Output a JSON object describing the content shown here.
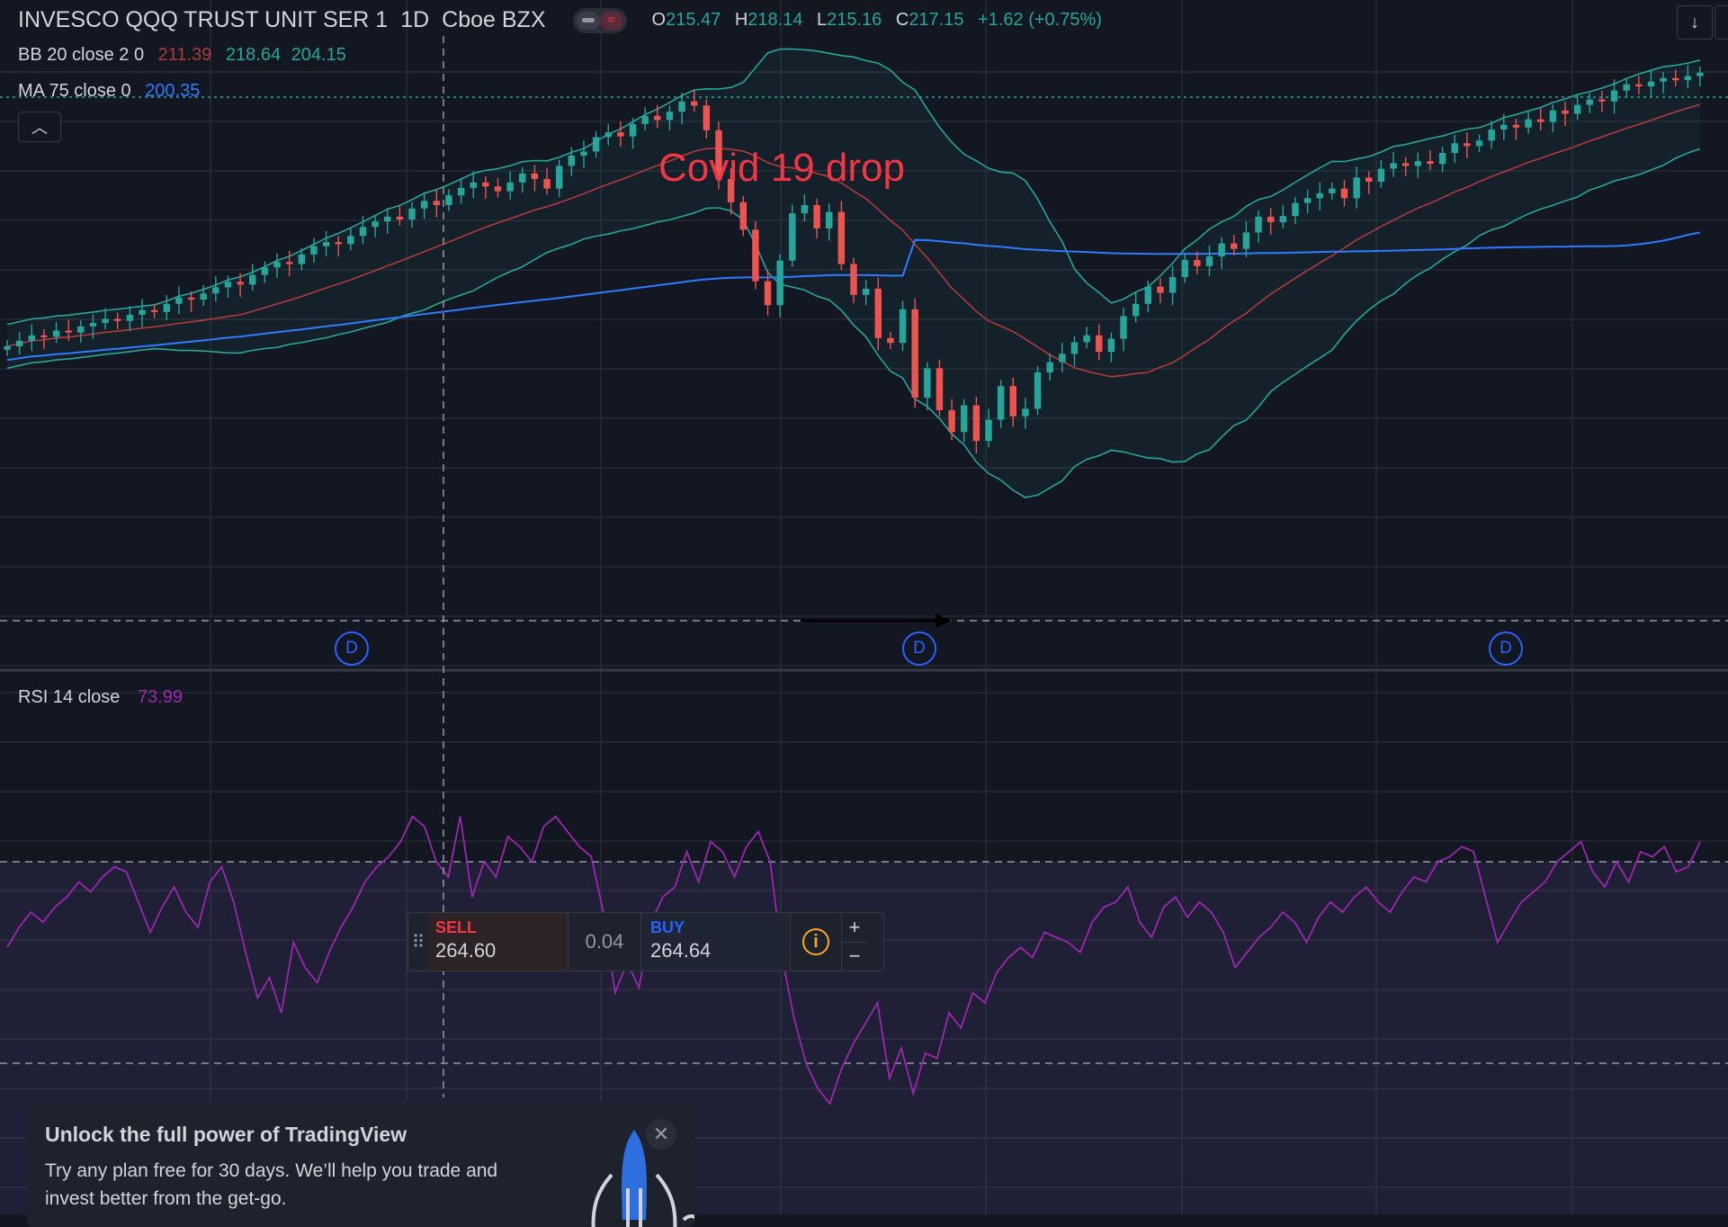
{
  "header": {
    "symbol": "INVESCO QQQ TRUST UNIT SER 1",
    "interval": "1D",
    "exchange": "Cboe BZX",
    "ohlc": {
      "o_label": "O",
      "o": "215.47",
      "h_label": "H",
      "h": "218.14",
      "l_label": "L",
      "l": "215.16",
      "c_label": "C",
      "c": "217.15",
      "change": "+1.62 (+0.75%)"
    }
  },
  "indicators": {
    "bb": {
      "label": "BB 20 close 2 0",
      "basis": "211.39",
      "upper": "218.64",
      "lower": "204.15"
    },
    "ma": {
      "label": "MA 75 close 0",
      "value": "200.35"
    },
    "rsi": {
      "label": "RSI 14 close",
      "value": "73.99"
    }
  },
  "annotation": {
    "text": "Covid 19 drop"
  },
  "markers": [
    "D",
    "D",
    "D"
  ],
  "trade_panel": {
    "sell_label": "SELL",
    "sell_price": "264.60",
    "spread": "0.04",
    "buy_label": "BUY",
    "buy_price": "264.64",
    "plus": "+",
    "minus": "−"
  },
  "promo": {
    "title": "Unlock the full power of TradingView",
    "text": "Try any plan free for 30 days. We’ll help you trade and invest better from the get-go."
  },
  "colors": {
    "background": "#131722",
    "up": "#26a69a",
    "down": "#ef5350",
    "bb_band": "#26a69a",
    "bb_basis": "#b23a3a",
    "ma": "#2e7bff",
    "rsi": "#9c27b0",
    "annotation": "#f23645",
    "marker": "#2962ff"
  },
  "chart_data": [
    {
      "type": "candlestick",
      "title": "INVESCO QQQ TRUST UNIT SER 1",
      "price_range": [
        150,
        230
      ],
      "price": [
        190.0,
        190.8,
        191.6,
        191.4,
        192.3,
        192.0,
        192.9,
        193.4,
        194.0,
        193.7,
        194.6,
        195.3,
        195.0,
        196.2,
        197.1,
        196.8,
        197.7,
        198.6,
        199.4,
        199.0,
        200.4,
        201.5,
        202.3,
        202.0,
        203.4,
        204.6,
        205.2,
        204.9,
        206.1,
        207.4,
        208.2,
        208.9,
        208.5,
        210.1,
        211.2,
        210.6,
        212.0,
        213.1,
        213.9,
        213.3,
        212.6,
        213.9,
        215.2,
        214.4,
        213.0,
        216.3,
        217.8,
        218.4,
        220.5,
        221.2,
        220.6,
        222.4,
        223.6,
        223.0,
        224.2,
        225.7,
        225.1,
        221.5,
        214.4,
        211.0,
        207.0,
        199.5,
        196.0,
        202.5,
        209.4,
        210.6,
        207.2,
        209.6,
        202.0,
        197.5,
        198.4,
        191.2,
        190.5,
        195.4,
        182.5,
        186.8,
        180.7,
        177.5,
        181.4,
        176.2,
        179.3,
        184.2,
        179.8,
        180.9,
        186.2,
        187.7,
        188.9,
        190.6,
        191.6,
        189.2,
        191.1,
        194.4,
        196.2,
        198.7,
        197.8,
        200.1,
        202.6,
        201.7,
        203.1,
        205.0,
        204.2,
        206.6,
        208.9,
        208.1,
        209.0,
        210.9,
        211.6,
        212.3,
        213.0,
        211.6,
        214.6,
        214.0,
        215.9,
        216.7,
        216.3,
        217.0,
        216.6,
        218.2,
        219.6,
        219.2,
        220.0,
        221.6,
        222.3,
        221.9,
        223.1,
        222.7,
        224.4,
        223.9,
        225.2,
        226.0,
        225.7,
        227.3,
        228.2,
        227.9,
        228.6,
        229.1,
        228.8,
        229.4,
        229.9
      ],
      "bollinger_upper_trend": "widens sharply around the drop",
      "ma75_last": 200.35,
      "bb_last": {
        "basis": 211.39,
        "upper": 218.64,
        "lower": 204.15
      }
    },
    {
      "type": "line",
      "title": "RSI 14 close",
      "y_range": [
        0,
        100
      ],
      "series": [
        {
          "name": "RSI 14 close",
          "values": [
            53,
            57,
            60,
            58,
            61,
            63,
            66,
            64,
            67,
            69,
            68,
            62,
            56,
            61,
            65,
            60,
            57,
            66,
            69,
            62,
            52,
            43,
            47,
            40,
            54,
            49,
            46,
            52,
            57,
            61,
            66,
            69,
            71,
            74,
            79,
            77,
            70,
            67,
            79,
            63,
            70,
            67,
            75,
            73,
            70,
            77,
            79,
            76,
            73,
            71,
            60,
            44,
            50,
            45,
            58,
            63,
            65,
            72,
            66,
            74,
            72,
            67,
            73,
            76,
            70,
            51,
            39,
            30,
            25,
            22,
            29,
            34,
            38,
            42,
            27,
            33,
            24,
            32,
            31,
            40,
            37,
            44,
            42,
            48,
            51,
            53,
            51,
            56,
            55,
            54,
            52,
            58,
            61,
            62,
            65,
            58,
            55,
            61,
            63,
            59,
            62,
            60,
            56,
            49,
            52,
            55,
            57,
            60,
            58,
            54,
            59,
            62,
            60,
            63,
            65,
            62,
            60,
            64,
            67,
            66,
            70,
            71,
            73,
            72,
            63,
            54,
            58,
            62,
            64,
            66,
            70,
            72,
            74,
            68,
            65,
            70,
            66,
            72,
            71,
            73,
            68,
            69,
            73.99
          ]
        }
      ],
      "reference_lines": [
        70,
        30
      ]
    }
  ]
}
